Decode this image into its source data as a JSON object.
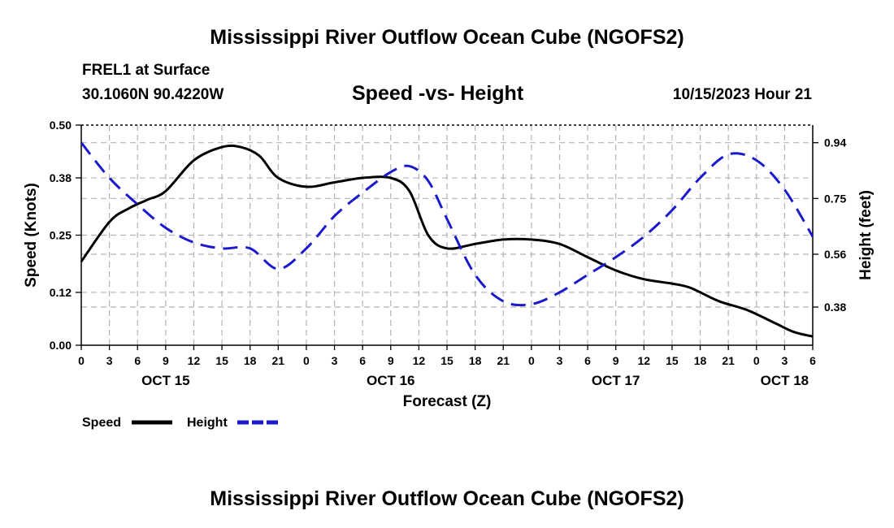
{
  "header": {
    "title": "Mississippi River Outflow Ocean Cube (NGOFS2)",
    "station": "FREL1 at Surface",
    "coords": "30.1060N  90.4220W",
    "subtitle": "Speed -vs- Height",
    "timestamp": "10/15/2023 Hour 21",
    "bottom_title": "Mississippi River Outflow Ocean Cube (NGOFS2)"
  },
  "colors": {
    "speed": "#000000",
    "height": "#1a1acc",
    "grid": "#b4b4b4"
  },
  "chart_data": {
    "type": "line",
    "title": "Speed -vs- Height",
    "xlabel": "Forecast (Z)",
    "ylabel": "Speed (Knots)",
    "y2label": "Height (feet)",
    "x_hours_start": 0,
    "x_hours_end": 78,
    "xticks": [
      "0",
      "3",
      "6",
      "9",
      "12",
      "15",
      "18",
      "21",
      "0",
      "3",
      "6",
      "9",
      "12",
      "15",
      "18",
      "21",
      "0",
      "3",
      "6",
      "9",
      "12",
      "15",
      "18",
      "21",
      "0",
      "3",
      "6"
    ],
    "date_labels": [
      {
        "label": "OCT 15",
        "hour": 9
      },
      {
        "label": "OCT 16",
        "hour": 33
      },
      {
        "label": "OCT 17",
        "hour": 57
      },
      {
        "label": "OCT 18",
        "hour": 75
      }
    ],
    "ylim": [
      0,
      0.5
    ],
    "yticks": [
      "0.00",
      "0.12",
      "0.25",
      "0.38",
      "0.50"
    ],
    "y2lim": [
      0.25,
      1.0
    ],
    "y2ticks": [
      "0.38",
      "0.56",
      "0.75",
      "0.94"
    ],
    "series": [
      {
        "name": "Speed",
        "axis": "left",
        "style": "solid",
        "x": [
          0,
          3,
          5,
          7,
          9,
          12,
          15,
          17,
          19,
          21,
          24,
          27,
          30,
          33,
          35,
          37,
          39,
          42,
          45,
          48,
          51,
          54,
          57,
          60,
          63,
          65,
          68,
          71,
          74,
          76,
          78
        ],
        "values": [
          0.19,
          0.28,
          0.31,
          0.33,
          0.35,
          0.42,
          0.45,
          0.45,
          0.43,
          0.38,
          0.36,
          0.37,
          0.38,
          0.38,
          0.35,
          0.25,
          0.22,
          0.23,
          0.24,
          0.24,
          0.23,
          0.2,
          0.17,
          0.15,
          0.14,
          0.13,
          0.1,
          0.08,
          0.05,
          0.03,
          0.02
        ]
      },
      {
        "name": "Height",
        "axis": "right",
        "style": "dashed",
        "x": [
          0,
          3,
          6,
          9,
          12,
          15,
          18,
          21,
          24,
          27,
          30,
          33,
          35,
          37,
          39,
          42,
          45,
          48,
          51,
          54,
          57,
          60,
          63,
          66,
          69,
          72,
          75,
          78
        ],
        "values": [
          0.94,
          0.82,
          0.73,
          0.65,
          0.6,
          0.58,
          0.58,
          0.51,
          0.58,
          0.69,
          0.77,
          0.84,
          0.86,
          0.81,
          0.68,
          0.49,
          0.4,
          0.39,
          0.43,
          0.49,
          0.55,
          0.62,
          0.71,
          0.82,
          0.9,
          0.88,
          0.78,
          0.62
        ]
      }
    ],
    "legend": [
      {
        "label": "Speed",
        "style": "solid"
      },
      {
        "label": "Height",
        "style": "dashed"
      }
    ]
  }
}
